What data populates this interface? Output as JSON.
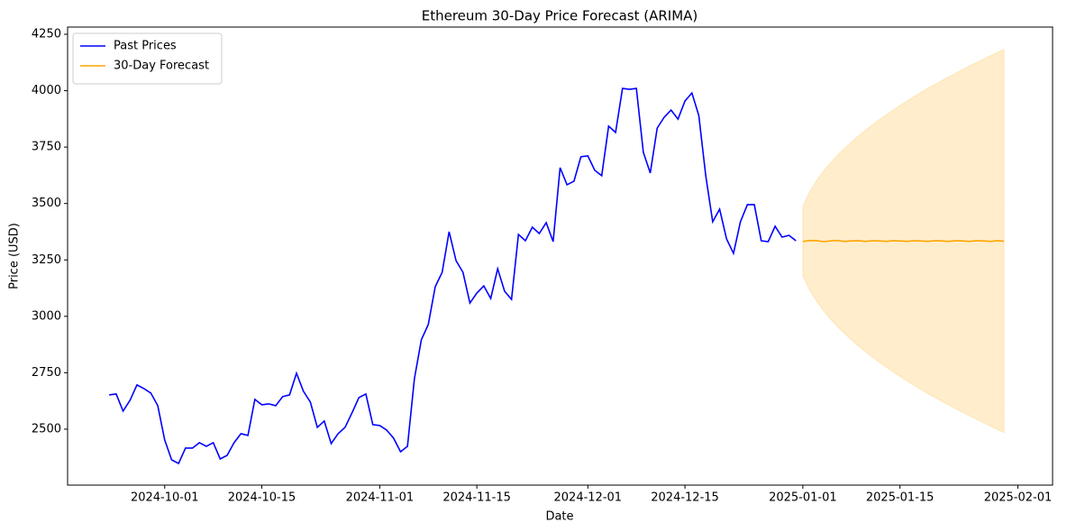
{
  "chart_data": {
    "type": "line",
    "title": "Ethereum 30-Day Price Forecast (ARIMA)",
    "xlabel": "Date",
    "ylabel": "Price (USD)",
    "xlim": [
      "2024-09-17",
      "2025-02-06"
    ],
    "xticks": [
      "2024-10-01",
      "2024-10-15",
      "2024-11-01",
      "2024-11-15",
      "2024-12-01",
      "2024-12-15",
      "2025-01-01",
      "2025-01-15",
      "2025-02-01"
    ],
    "ylim": [
      2252,
      4282
    ],
    "yticks": [
      2500,
      2750,
      3000,
      3250,
      3500,
      3750,
      4000,
      4250
    ],
    "grid": false,
    "legend": "upper left",
    "series": [
      {
        "name": "Past Prices",
        "color": "#0000ff",
        "x": [
          "2024-09-23",
          "2024-09-24",
          "2024-09-25",
          "2024-09-26",
          "2024-09-27",
          "2024-09-28",
          "2024-09-29",
          "2024-09-30",
          "2024-10-01",
          "2024-10-02",
          "2024-10-03",
          "2024-10-04",
          "2024-10-05",
          "2024-10-06",
          "2024-10-07",
          "2024-10-08",
          "2024-10-09",
          "2024-10-10",
          "2024-10-11",
          "2024-10-12",
          "2024-10-13",
          "2024-10-14",
          "2024-10-15",
          "2024-10-16",
          "2024-10-17",
          "2024-10-18",
          "2024-10-19",
          "2024-10-20",
          "2024-10-21",
          "2024-10-22",
          "2024-10-23",
          "2024-10-24",
          "2024-10-25",
          "2024-10-26",
          "2024-10-27",
          "2024-10-28",
          "2024-10-29",
          "2024-10-30",
          "2024-10-31",
          "2024-11-01",
          "2024-11-02",
          "2024-11-03",
          "2024-11-04",
          "2024-11-05",
          "2024-11-06",
          "2024-11-07",
          "2024-11-08",
          "2024-11-09",
          "2024-11-10",
          "2024-11-11",
          "2024-11-12",
          "2024-11-13",
          "2024-11-14",
          "2024-11-15",
          "2024-11-16",
          "2024-11-17",
          "2024-11-18",
          "2024-11-19",
          "2024-11-20",
          "2024-11-21",
          "2024-11-22",
          "2024-11-23",
          "2024-11-24",
          "2024-11-25",
          "2024-11-26",
          "2024-11-27",
          "2024-11-28",
          "2024-11-29",
          "2024-11-30",
          "2024-12-01",
          "2024-12-02",
          "2024-12-03",
          "2024-12-04",
          "2024-12-05",
          "2024-12-06",
          "2024-12-07",
          "2024-12-08",
          "2024-12-09",
          "2024-12-10",
          "2024-12-11",
          "2024-12-12",
          "2024-12-13",
          "2024-12-14",
          "2024-12-15",
          "2024-12-16",
          "2024-12-17",
          "2024-12-18",
          "2024-12-19",
          "2024-12-20",
          "2024-12-21",
          "2024-12-22",
          "2024-12-23",
          "2024-12-24",
          "2024-12-25",
          "2024-12-26",
          "2024-12-27",
          "2024-12-28",
          "2024-12-29",
          "2024-12-30",
          "2024-12-31"
        ],
        "values": [
          2652,
          2656,
          2580,
          2628,
          2696,
          2680,
          2660,
          2604,
          2452,
          2364,
          2348,
          2416,
          2416,
          2440,
          2424,
          2440,
          2368,
          2384,
          2440,
          2480,
          2472,
          2632,
          2608,
          2612,
          2604,
          2644,
          2652,
          2748,
          2668,
          2620,
          2508,
          2536,
          2436,
          2480,
          2508,
          2572,
          2640,
          2656,
          2520,
          2516,
          2496,
          2460,
          2400,
          2424,
          2724,
          2896,
          2964,
          3131,
          3195,
          3375,
          3247,
          3195,
          3059,
          3103,
          3135,
          3079,
          3211,
          3111,
          3075,
          3363,
          3335,
          3395,
          3367,
          3415,
          3331,
          3659,
          3583,
          3599,
          3707,
          3711,
          3647,
          3623,
          3843,
          3815,
          4010,
          4006,
          4010,
          3727,
          3635,
          3834,
          3882,
          3914,
          3874,
          3954,
          3990,
          3890,
          3623,
          3419,
          3475,
          3343,
          3279,
          3419,
          3495,
          3495,
          3335,
          3331,
          3399,
          3351,
          3359,
          3335
        ]
      },
      {
        "name": "30-Day Forecast",
        "color": "#ffa500",
        "band_color": "#ffa500",
        "x": [
          "2025-01-01",
          "2025-01-02",
          "2025-01-03",
          "2025-01-04",
          "2025-01-05",
          "2025-01-06",
          "2025-01-07",
          "2025-01-08",
          "2025-01-09",
          "2025-01-10",
          "2025-01-11",
          "2025-01-12",
          "2025-01-13",
          "2025-01-14",
          "2025-01-15",
          "2025-01-16",
          "2025-01-17",
          "2025-01-18",
          "2025-01-19",
          "2025-01-20",
          "2025-01-21",
          "2025-01-22",
          "2025-01-23",
          "2025-01-24",
          "2025-01-25",
          "2025-01-26",
          "2025-01-27",
          "2025-01-28",
          "2025-01-29",
          "2025-01-30"
        ],
        "values": [
          3332,
          3336,
          3335,
          3331,
          3334,
          3336,
          3332,
          3334,
          3335,
          3332,
          3335,
          3334,
          3332,
          3335,
          3334,
          3332,
          3335,
          3334,
          3332,
          3335,
          3334,
          3332,
          3335,
          3334,
          3332,
          3335,
          3334,
          3332,
          3335,
          3333
        ],
        "upper": [
          3489,
          3553,
          3602,
          3644,
          3681,
          3714,
          3744,
          3772,
          3799,
          3824,
          3848,
          3871,
          3893,
          3914,
          3934,
          3954,
          3973,
          3992,
          4010,
          4027,
          4044,
          4061,
          4077,
          4093,
          4109,
          4124,
          4139,
          4154,
          4169,
          4183
        ],
        "lower": [
          3179,
          3115,
          3066,
          3024,
          2987,
          2954,
          2924,
          2896,
          2869,
          2844,
          2820,
          2797,
          2775,
          2754,
          2734,
          2714,
          2695,
          2676,
          2658,
          2641,
          2624,
          2607,
          2591,
          2575,
          2559,
          2544,
          2529,
          2514,
          2499,
          2485
        ]
      }
    ]
  }
}
